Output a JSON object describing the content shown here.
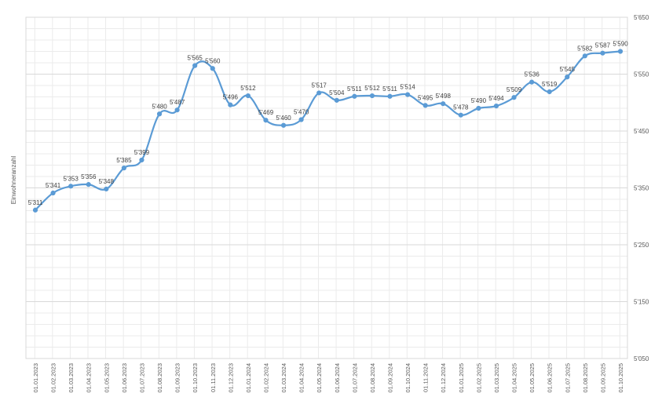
{
  "chart_data": {
    "type": "line",
    "ylabel": "Einwohneranzahl",
    "ylim": [
      5050,
      5650
    ],
    "yticks": [
      5050,
      5150,
      5250,
      5350,
      5450,
      5550,
      5650
    ],
    "ytick_labels": [
      "5'050",
      "5'150",
      "5'250",
      "5'350",
      "5'450",
      "5'550",
      "5'650"
    ],
    "y_axis_side": "right",
    "grid": true,
    "series_color": "#5b9bd5",
    "x": [
      "01.01.2023",
      "01.02.2023",
      "01.03.2023",
      "01.04.2023",
      "01.05.2023",
      "01.06.2023",
      "01.07.2023",
      "01.08.2023",
      "01.09.2023",
      "01.10.2023",
      "01.11.2023",
      "01.12.2023",
      "01.01.2024",
      "01.02.2024",
      "01.03.2024",
      "01.04.2024",
      "01.05.2024",
      "01.06.2024",
      "01.07.2024",
      "01.08.2024",
      "01.09.2024",
      "01.10.2024",
      "01.11.2024",
      "01.12.2024",
      "01.01.2025",
      "01.02.2025",
      "01.03.2025",
      "01.04.2025",
      "01.05.2025",
      "01.06.2025",
      "01.07.2025",
      "01.08.2025",
      "01.09.2025",
      "01.10.2025"
    ],
    "values": [
      5311,
      5341,
      5353,
      5356,
      5348,
      5385,
      5399,
      5480,
      5487,
      5565,
      5560,
      5496,
      5512,
      5469,
      5460,
      5470,
      5517,
      5504,
      5511,
      5512,
      5511,
      5514,
      5495,
      5498,
      5478,
      5490,
      5494,
      5509,
      5536,
      5519,
      5545,
      5582,
      5587,
      5590
    ],
    "value_labels": [
      "5'311",
      "5'341",
      "5'353",
      "5'356",
      "5'348",
      "5'385",
      "5'399",
      "5'480",
      "5'487",
      "5'565",
      "5'560",
      "5'496",
      "5'512",
      "5'469",
      "5'460",
      "5'470",
      "5'517",
      "5'504",
      "5'511",
      "5'512",
      "5'511",
      "5'514",
      "5'495",
      "5'498",
      "5'478",
      "5'490",
      "5'494",
      "5'509",
      "5'536",
      "5'519",
      "5'545",
      "5'582",
      "5'587",
      "5'590"
    ]
  }
}
